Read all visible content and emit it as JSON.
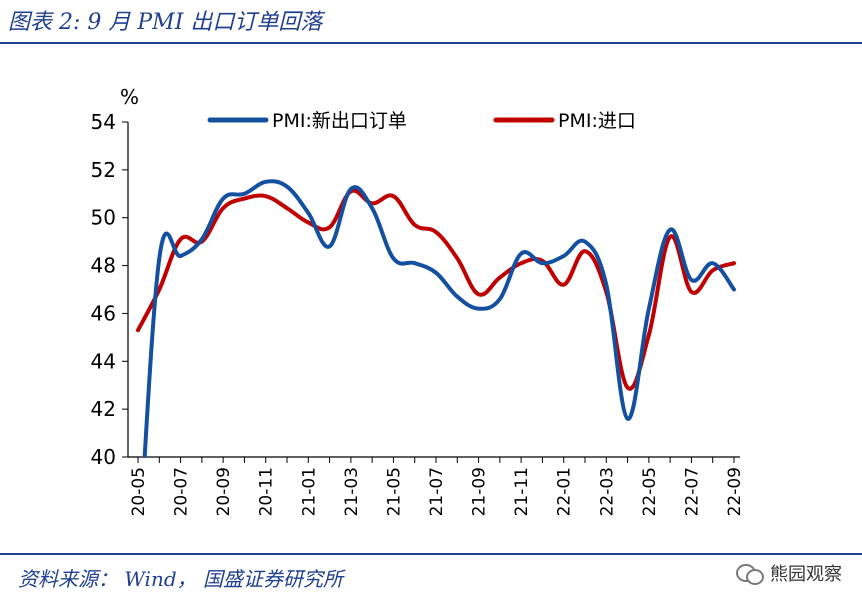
{
  "header": {
    "title": "图表 2:  9 月 PMI 出口订单回落"
  },
  "footer": {
    "source": "资料来源： Wind， 国盛证券研究所",
    "watermark": "熊园观察"
  },
  "chart_data": {
    "type": "line",
    "title": "",
    "ylabel": "%",
    "xlabel": "",
    "ylim": [
      40,
      54
    ],
    "yticks": [
      40,
      42,
      44,
      46,
      48,
      50,
      52,
      54
    ],
    "x": [
      "20-05",
      "20-06",
      "20-07",
      "20-08",
      "20-09",
      "20-10",
      "20-11",
      "20-12",
      "21-01",
      "21-02",
      "21-03",
      "21-04",
      "21-05",
      "21-06",
      "21-07",
      "21-08",
      "21-09",
      "21-10",
      "21-11",
      "21-12",
      "22-01",
      "22-02",
      "22-03",
      "22-04",
      "22-05",
      "22-06",
      "22-07",
      "22-08",
      "22-09"
    ],
    "xtick_labels": [
      "20-05",
      "20-07",
      "20-09",
      "20-11",
      "21-01",
      "21-03",
      "21-05",
      "21-07",
      "21-09",
      "21-11",
      "22-01",
      "22-03",
      "22-05",
      "22-07",
      "22-09"
    ],
    "legend_position": "top",
    "grid": false,
    "series": [
      {
        "name": "PMI:新出口订单",
        "color": "#1450a0",
        "values": [
          35.3,
          48.3,
          48.4,
          49.1,
          50.8,
          51.0,
          51.5,
          51.3,
          50.2,
          48.8,
          51.2,
          50.4,
          48.3,
          48.1,
          47.7,
          46.7,
          46.2,
          46.6,
          48.5,
          48.1,
          48.4,
          49.0,
          47.2,
          41.6,
          46.2,
          49.5,
          47.4,
          48.1,
          47.0
        ]
      },
      {
        "name": "PMI:进口",
        "color": "#c00000",
        "values": [
          45.3,
          47.0,
          49.1,
          49.0,
          50.4,
          50.8,
          50.9,
          50.4,
          49.8,
          49.6,
          51.1,
          50.6,
          50.9,
          49.7,
          49.4,
          48.3,
          46.8,
          47.5,
          48.1,
          48.2,
          47.2,
          48.6,
          46.9,
          42.9,
          45.1,
          49.2,
          46.9,
          47.8,
          48.1
        ]
      }
    ]
  }
}
